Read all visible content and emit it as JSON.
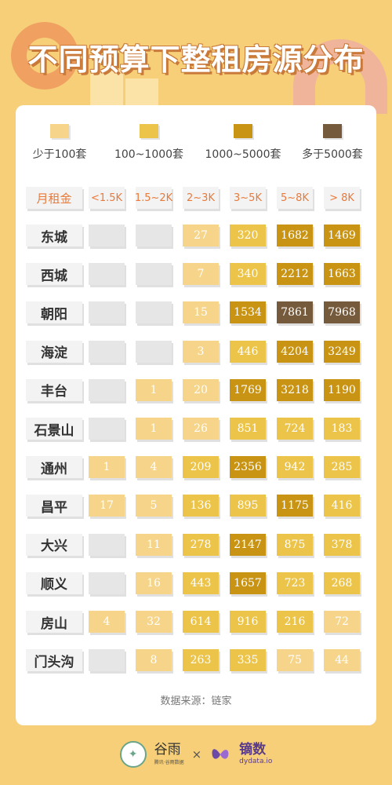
{
  "title": "不同预算下整租房源分布",
  "colors": {
    "empty": "#e6e6e6",
    "lt100": "#f6d58a",
    "r100_1000": "#ecc44a",
    "r1000_5000": "#c99413",
    "gt5000": "#765a3c"
  },
  "chart_data": {
    "type": "heatmap",
    "title": "不同预算下整租房源分布",
    "corner_label": "月租金",
    "columns": [
      "<1.5K",
      "1.5~2K",
      "2~3K",
      "3~5K",
      "5~8K",
      "> 8K"
    ],
    "legend": [
      {
        "label": "少于100套",
        "color": "#f6d58a"
      },
      {
        "label": "100~1000套",
        "color": "#ecc44a"
      },
      {
        "label": "1000~5000套",
        "color": "#c99413"
      },
      {
        "label": "多于5000套",
        "color": "#765a3c"
      }
    ],
    "rows": [
      {
        "district": "东城",
        "values": [
          null,
          null,
          27,
          320,
          1682,
          1469
        ]
      },
      {
        "district": "西城",
        "values": [
          null,
          null,
          7,
          340,
          2212,
          1663
        ]
      },
      {
        "district": "朝阳",
        "values": [
          null,
          null,
          15,
          1534,
          7861,
          7968
        ]
      },
      {
        "district": "海淀",
        "values": [
          null,
          null,
          3,
          446,
          4204,
          3249
        ]
      },
      {
        "district": "丰台",
        "values": [
          null,
          1,
          20,
          1769,
          3218,
          1190
        ]
      },
      {
        "district": "石景山",
        "values": [
          null,
          1,
          26,
          851,
          724,
          183
        ]
      },
      {
        "district": "通州",
        "values": [
          1,
          4,
          209,
          2356,
          942,
          285
        ]
      },
      {
        "district": "昌平",
        "values": [
          17,
          5,
          136,
          895,
          1175,
          416
        ]
      },
      {
        "district": "大兴",
        "values": [
          null,
          11,
          278,
          2147,
          875,
          378
        ]
      },
      {
        "district": "顺义",
        "values": [
          null,
          16,
          443,
          1657,
          723,
          268
        ]
      },
      {
        "district": "房山",
        "values": [
          4,
          32,
          614,
          916,
          216,
          72
        ]
      },
      {
        "district": "门头沟",
        "values": [
          null,
          8,
          263,
          335,
          75,
          44
        ]
      }
    ]
  },
  "source": "数据来源：链家",
  "footer": {
    "brand1": "谷雨",
    "brand1_sub": "腾讯·谷雨数据",
    "separator": "×",
    "brand2": "镝数",
    "brand2_sub": "dydata.io"
  }
}
